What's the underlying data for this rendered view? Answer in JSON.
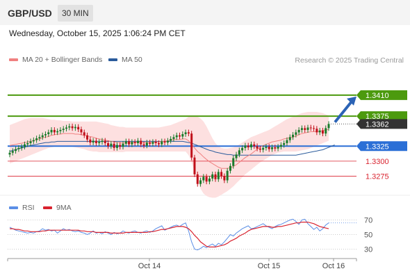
{
  "header": {
    "pair": "GBP/USD",
    "timeframe": "30 MIN"
  },
  "datetime": "Wednesday, October 15, 2025 1:06:24 PM CET",
  "legend": {
    "ma20_label": "MA 20 + Bollinger Bands",
    "ma50_label": "MA 50",
    "credit": "Research © 2025 Trading Central",
    "rsi_label": "RSI",
    "rsi_ma_label": "9MA"
  },
  "colors": {
    "ma20": "#f08080",
    "ma50": "#2a5b9b",
    "bollinger": "#fde0e0",
    "up_candle": "#1a7a2a",
    "down_candle": "#c0101a",
    "resistance": "#4c9a0e",
    "pivot": "#2b6fd6",
    "support": "#d9232f",
    "last_price": "#333333",
    "rsi": "#5b8ee6",
    "rsi_ma": "#d9232f"
  },
  "chart_data": [
    {
      "type": "candlestick",
      "title": "",
      "x_ticks": [
        "Oct 14",
        "Oct 15",
        "Oct 16"
      ],
      "ylim": [
        1.3235,
        1.3455
      ],
      "last_price": 1.3362,
      "levels": [
        {
          "value": 1.341,
          "label": "1.3410",
          "kind": "resistance"
        },
        {
          "value": 1.3375,
          "label": "1.3375",
          "kind": "resistance"
        },
        {
          "value": 1.3325,
          "label": "1.3325",
          "kind": "pivot"
        },
        {
          "value": 1.33,
          "label": "1.3300",
          "kind": "support"
        },
        {
          "value": 1.3275,
          "label": "1.3275",
          "kind": "support"
        }
      ],
      "projection": {
        "from": 1.3365,
        "to": 1.341
      },
      "close": [
        1.3314,
        1.3317,
        1.332,
        1.3322,
        1.3324,
        1.3328,
        1.333,
        1.3333,
        1.3335,
        1.3338,
        1.334,
        1.3343,
        1.3345,
        1.3348,
        1.3352,
        1.3348,
        1.335,
        1.3352,
        1.3354,
        1.3356,
        1.3358,
        1.3355,
        1.3357,
        1.3353,
        1.3348,
        1.3343,
        1.3336,
        1.3331,
        1.3334,
        1.333,
        1.3332,
        1.3334,
        1.333,
        1.3325,
        1.3329,
        1.3322,
        1.3327,
        1.3324,
        1.3329,
        1.3333,
        1.3328,
        1.3332,
        1.333,
        1.3334,
        1.3328,
        1.3326,
        1.3331,
        1.3329,
        1.3332,
        1.333,
        1.3328,
        1.3333,
        1.3331,
        1.3334,
        1.3337,
        1.334,
        1.3343,
        1.3341,
        1.3345,
        1.3348,
        1.3346,
        1.3306,
        1.3278,
        1.3262,
        1.3268,
        1.3274,
        1.3266,
        1.3271,
        1.3278,
        1.327,
        1.3282,
        1.3275,
        1.3268,
        1.3284,
        1.3292,
        1.3305,
        1.3311,
        1.3318,
        1.3322,
        1.3326,
        1.3323,
        1.3328,
        1.3325,
        1.3321,
        1.3319,
        1.3322,
        1.3324,
        1.332,
        1.3323,
        1.3321,
        1.3324,
        1.3327,
        1.333,
        1.3335,
        1.334,
        1.3344,
        1.3348,
        1.3352,
        1.3355,
        1.3352,
        1.3356,
        1.3355,
        1.3354,
        1.3348,
        1.3351,
        1.3346,
        1.3355,
        1.3362
      ],
      "ma20": [
        1.3326,
        1.3327,
        1.3328,
        1.3329,
        1.333,
        1.3331,
        1.3332,
        1.3333,
        1.3334,
        1.3336,
        1.3337,
        1.3339,
        1.334,
        1.3341,
        1.3343,
        1.3344,
        1.3345,
        1.3345,
        1.3346,
        1.3346,
        1.3346,
        1.3346,
        1.3345,
        1.3345,
        1.3344,
        1.3343,
        1.3342,
        1.3341,
        1.334,
        1.3338,
        1.3337,
        1.3336,
        1.3335,
        1.3334,
        1.3333,
        1.3332,
        1.3331,
        1.3331,
        1.333,
        1.3331,
        1.3331,
        1.3331,
        1.3331,
        1.3331,
        1.3331,
        1.3331,
        1.3331,
        1.3331,
        1.3331,
        1.3332,
        1.3332,
        1.3333,
        1.3333,
        1.3334,
        1.3335,
        1.3336,
        1.3336,
        1.3336,
        1.3337,
        1.3337,
        1.3334,
        1.3328,
        1.3322,
        1.3316,
        1.3312,
        1.3307,
        1.3303,
        1.3299,
        1.3296,
        1.3293,
        1.329,
        1.3288,
        1.3288,
        1.3288,
        1.3289,
        1.3291,
        1.3294,
        1.3298,
        1.3302,
        1.3306,
        1.3309,
        1.3312,
        1.3316,
        1.332,
        1.3323,
        1.3326,
        1.3328,
        1.333,
        1.3332,
        1.3333,
        1.3334,
        1.3335,
        1.3337,
        1.3338,
        1.3339,
        1.334,
        1.3342,
        1.3344,
        1.3346,
        1.3347,
        1.3348,
        1.3349,
        1.3349,
        1.3349,
        1.335,
        1.3351,
        1.3352,
        1.3353
      ],
      "bb_upper": [
        1.336,
        1.3362,
        1.3364,
        1.3366,
        1.3368,
        1.337,
        1.3371,
        1.3372,
        1.3372,
        1.3372,
        1.3372,
        1.3372,
        1.3371,
        1.337,
        1.3369,
        1.3369,
        1.3368,
        1.3368,
        1.3367,
        1.3367,
        1.3367,
        1.3366,
        1.3366,
        1.3366,
        1.3366,
        1.3366,
        1.3366,
        1.3366,
        1.3366,
        1.3366,
        1.3365,
        1.3364,
        1.3363,
        1.3362,
        1.336,
        1.3359,
        1.3358,
        1.3357,
        1.3357,
        1.3356,
        1.3356,
        1.3356,
        1.3356,
        1.3356,
        1.3356,
        1.3356,
        1.3356,
        1.3356,
        1.3356,
        1.3356,
        1.3356,
        1.3357,
        1.3358,
        1.3359,
        1.336,
        1.3362,
        1.3364,
        1.3366,
        1.3368,
        1.337,
        1.3374,
        1.3375,
        1.3375,
        1.3374,
        1.3371,
        1.3366,
        1.3358,
        1.3348,
        1.3338,
        1.333,
        1.3325,
        1.3322,
        1.3321,
        1.3321,
        1.3322,
        1.3323,
        1.3325,
        1.3328,
        1.3331,
        1.3334,
        1.3337,
        1.334,
        1.3342,
        1.3344,
        1.3346,
        1.3348,
        1.335,
        1.3352,
        1.3355,
        1.3358,
        1.3361,
        1.3364,
        1.3367,
        1.337,
        1.3372,
        1.3374,
        1.3376,
        1.3378,
        1.338,
        1.3381,
        1.3382,
        1.3382,
        1.3382,
        1.3382,
        1.3381,
        1.338,
        1.3378,
        1.3376
      ],
      "bb_lower": [
        1.3296,
        1.3298,
        1.33,
        1.3302,
        1.3304,
        1.3306,
        1.3308,
        1.331,
        1.3312,
        1.3314,
        1.3316,
        1.3318,
        1.332,
        1.3322,
        1.3323,
        1.3324,
        1.3325,
        1.3326,
        1.3326,
        1.3326,
        1.3325,
        1.3324,
        1.3323,
        1.3322,
        1.3321,
        1.332,
        1.3318,
        1.3317,
        1.3316,
        1.3316,
        1.3315,
        1.3315,
        1.3315,
        1.3315,
        1.3315,
        1.3315,
        1.3315,
        1.3315,
        1.3315,
        1.3316,
        1.3316,
        1.3316,
        1.3316,
        1.3316,
        1.3316,
        1.3316,
        1.3316,
        1.3316,
        1.3316,
        1.3316,
        1.3316,
        1.3316,
        1.3316,
        1.3316,
        1.3316,
        1.3316,
        1.3316,
        1.3316,
        1.3316,
        1.3316,
        1.331,
        1.3298,
        1.3282,
        1.3266,
        1.3254,
        1.3246,
        1.3242,
        1.324,
        1.3239,
        1.3239,
        1.3241,
        1.3244,
        1.3247,
        1.325,
        1.3254,
        1.3258,
        1.3263,
        1.3268,
        1.3273,
        1.3278,
        1.3282,
        1.3286,
        1.329,
        1.3294,
        1.3298,
        1.3301,
        1.3304,
        1.3307,
        1.331,
        1.3312,
        1.3314,
        1.3315,
        1.3316,
        1.3316,
        1.3316,
        1.3316,
        1.3316,
        1.3317,
        1.3318,
        1.3319,
        1.332,
        1.3322,
        1.3324,
        1.3326,
        1.3328,
        1.333,
        1.3332,
        1.3334
      ],
      "ma50": [
        1.3316,
        1.3318,
        1.3319,
        1.3321,
        1.3322,
        1.3323,
        1.3325,
        1.3326,
        1.3327,
        1.3328,
        1.3329,
        1.333,
        1.3331,
        1.3331,
        1.3332,
        1.3332,
        1.3333,
        1.3333,
        1.3333,
        1.3333,
        1.3333,
        1.3333,
        1.3333,
        1.3333,
        1.3333,
        1.3333,
        1.3333,
        1.3333,
        1.3333,
        1.3333,
        1.3333,
        1.3333,
        1.3333,
        1.3333,
        1.3333,
        1.3333,
        1.3333,
        1.3333,
        1.3333,
        1.3333,
        1.3333,
        1.3333,
        1.3333,
        1.3333,
        1.3333,
        1.3333,
        1.3333,
        1.3333,
        1.3333,
        1.3333,
        1.3333,
        1.3333,
        1.3333,
        1.3333,
        1.3333,
        1.3333,
        1.3333,
        1.3333,
        1.3333,
        1.3332,
        1.3331,
        1.333,
        1.3328,
        1.3326,
        1.3324,
        1.3322,
        1.332,
        1.3318,
        1.3317,
        1.3315,
        1.3314,
        1.3313,
        1.3312,
        1.3311,
        1.3311,
        1.331,
        1.331,
        1.331,
        1.331,
        1.331,
        1.331,
        1.331,
        1.331,
        1.331,
        1.331,
        1.331,
        1.331,
        1.331,
        1.331,
        1.331,
        1.331,
        1.331,
        1.331,
        1.331,
        1.331,
        1.331,
        1.331,
        1.3311,
        1.3312,
        1.3313,
        1.3314,
        1.3315,
        1.3316,
        1.3317,
        1.3318,
        1.3319,
        1.3321,
        1.3323,
        1.3325,
        1.3327
      ]
    },
    {
      "type": "line",
      "title": "",
      "y_ticks": [
        70,
        50,
        30
      ],
      "ylim": [
        20,
        80
      ],
      "x_ticks": [
        "Oct 14",
        "Oct 15",
        "Oct 16"
      ],
      "series": [
        {
          "name": "RSI",
          "values": [
            60,
            58,
            56,
            55,
            54,
            53,
            52,
            53,
            52,
            54,
            55,
            58,
            56,
            57,
            55,
            56,
            52,
            55,
            58,
            56,
            57,
            55,
            54,
            55,
            53,
            52,
            50,
            52,
            55,
            52,
            53,
            51,
            54,
            52,
            50,
            53,
            51,
            52,
            55,
            53,
            52,
            54,
            55,
            53,
            52,
            54,
            55,
            53,
            55,
            58,
            60,
            62,
            56,
            58,
            60,
            62,
            63,
            61,
            64,
            66,
            55,
            40,
            30,
            29,
            31,
            34,
            32,
            35,
            37,
            34,
            38,
            36,
            40,
            45,
            50,
            48,
            52,
            55,
            58,
            60,
            62,
            58,
            59,
            61,
            63,
            65,
            62,
            60,
            58,
            61,
            63,
            64,
            66,
            68,
            70,
            71,
            68,
            64,
            70,
            71,
            65,
            61,
            57,
            60,
            55,
            58,
            63,
            66
          ]
        },
        {
          "name": "9MA",
          "values": [
            58,
            58,
            57,
            57,
            56,
            55,
            55,
            54,
            54,
            54,
            54,
            55,
            55,
            56,
            56,
            56,
            56,
            56,
            56,
            56,
            56,
            56,
            56,
            56,
            55,
            55,
            54,
            54,
            54,
            53,
            53,
            53,
            53,
            53,
            52,
            52,
            52,
            52,
            52,
            53,
            53,
            53,
            53,
            53,
            53,
            53,
            53,
            54,
            54,
            55,
            56,
            57,
            57,
            58,
            59,
            60,
            61,
            61,
            61,
            60,
            58,
            54,
            49,
            45,
            40,
            37,
            34,
            33,
            33,
            33,
            34,
            35,
            36,
            38,
            41,
            43,
            45,
            48,
            50,
            52,
            55,
            57,
            58,
            59,
            60,
            61,
            61,
            61,
            60,
            60,
            61,
            61,
            62,
            63,
            64,
            65,
            66,
            66,
            67,
            67,
            67,
            66,
            65,
            63,
            61,
            60,
            59,
            58
          ]
        }
      ]
    }
  ]
}
